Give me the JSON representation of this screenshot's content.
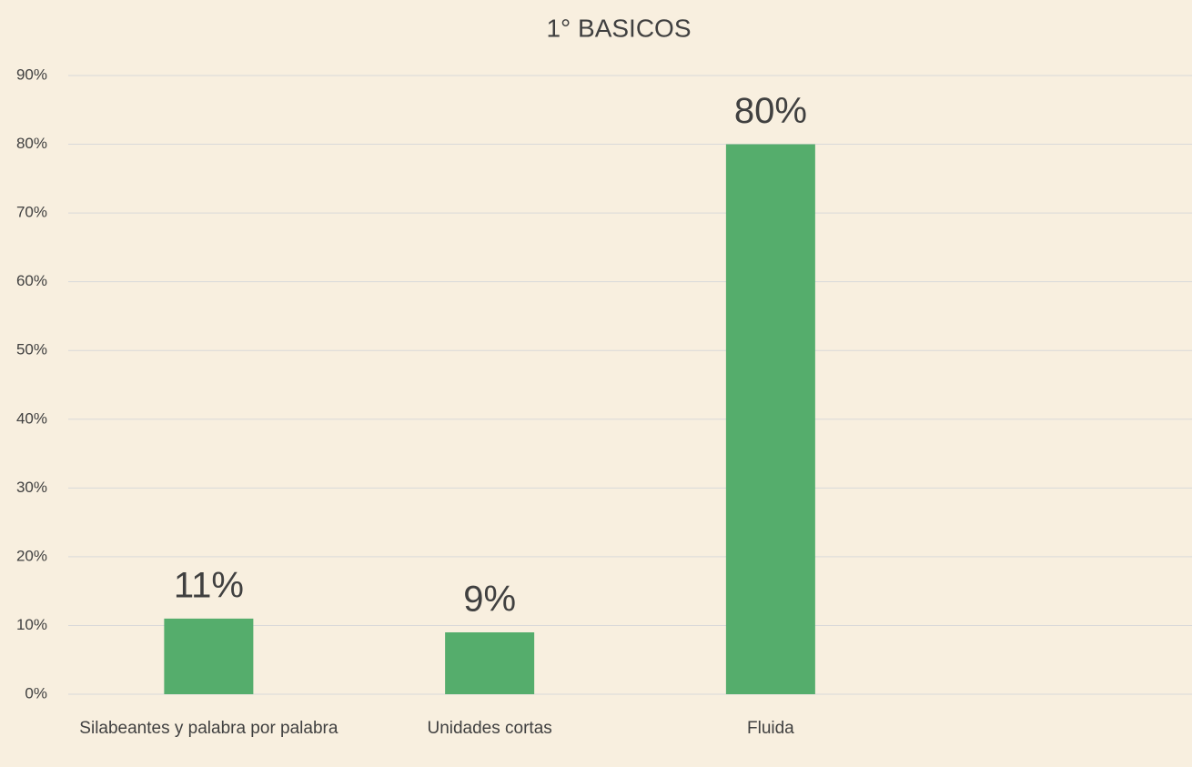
{
  "chart_data": {
    "type": "bar",
    "title": "1° BASICOS",
    "categories": [
      "Silabeantes y palabra por palabra",
      "Unidades cortas",
      "Fluida",
      null
    ],
    "values": [
      11,
      9,
      80,
      null
    ],
    "value_labels": [
      "11%",
      "9%",
      "80%",
      null
    ],
    "color": "#55ad6c",
    "ylim": [
      0,
      90
    ],
    "yticks": [
      {
        "value": 0,
        "label": "0%"
      },
      {
        "value": 10,
        "label": "10%"
      },
      {
        "value": 20,
        "label": "20%"
      },
      {
        "value": 30,
        "label": "30%"
      },
      {
        "value": 40,
        "label": "40%"
      },
      {
        "value": 50,
        "label": "50%"
      },
      {
        "value": 60,
        "label": "60%"
      },
      {
        "value": 70,
        "label": "70%"
      },
      {
        "value": 80,
        "label": "80%"
      },
      {
        "value": 90,
        "label": "90%"
      }
    ],
    "grid": true
  }
}
